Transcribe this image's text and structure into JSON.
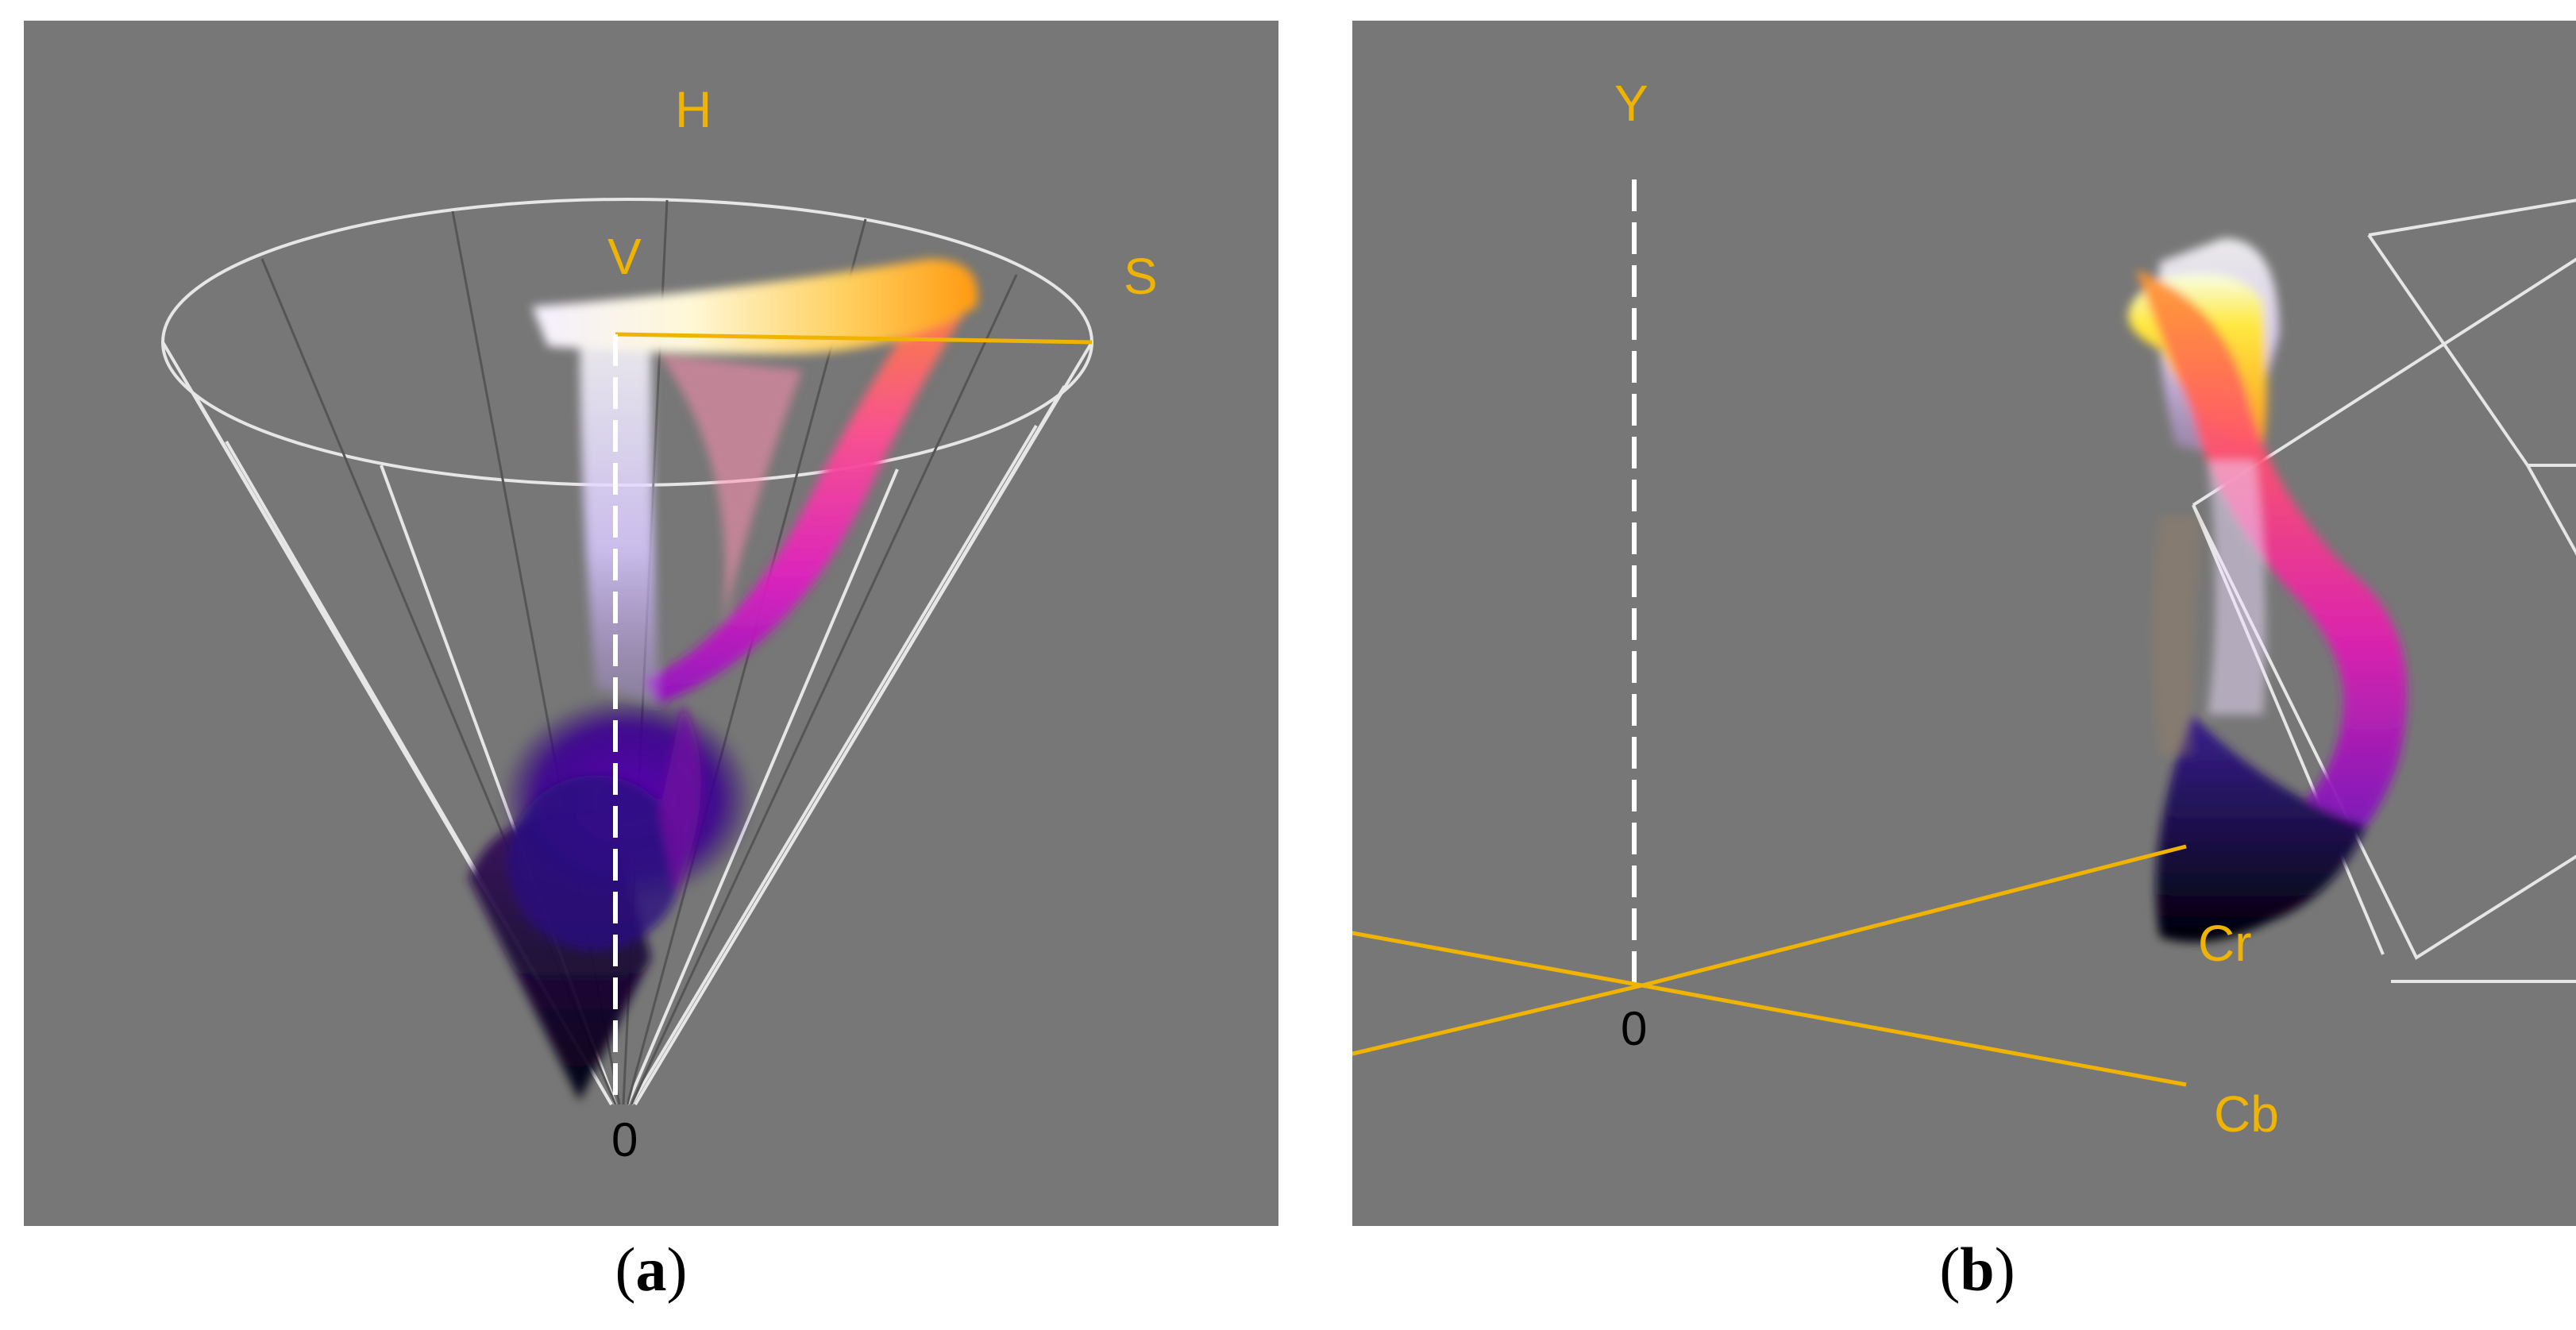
{
  "panels": [
    {
      "id": "a",
      "caption_letter": "a",
      "space": "HSV cone",
      "axis_labels": {
        "top": "H",
        "inner": "V",
        "side": "S"
      },
      "origin_label": "0"
    },
    {
      "id": "b",
      "caption_letter": "b",
      "space": "YCbCr cube",
      "axis_labels": {
        "top": "Y",
        "cr": "Cr",
        "cb": "Cb"
      },
      "origin_label": "0"
    }
  ],
  "colors": {
    "panel_background": "#777777",
    "axis_label": "#f0b400",
    "wireframe": "#e6e6e6"
  }
}
